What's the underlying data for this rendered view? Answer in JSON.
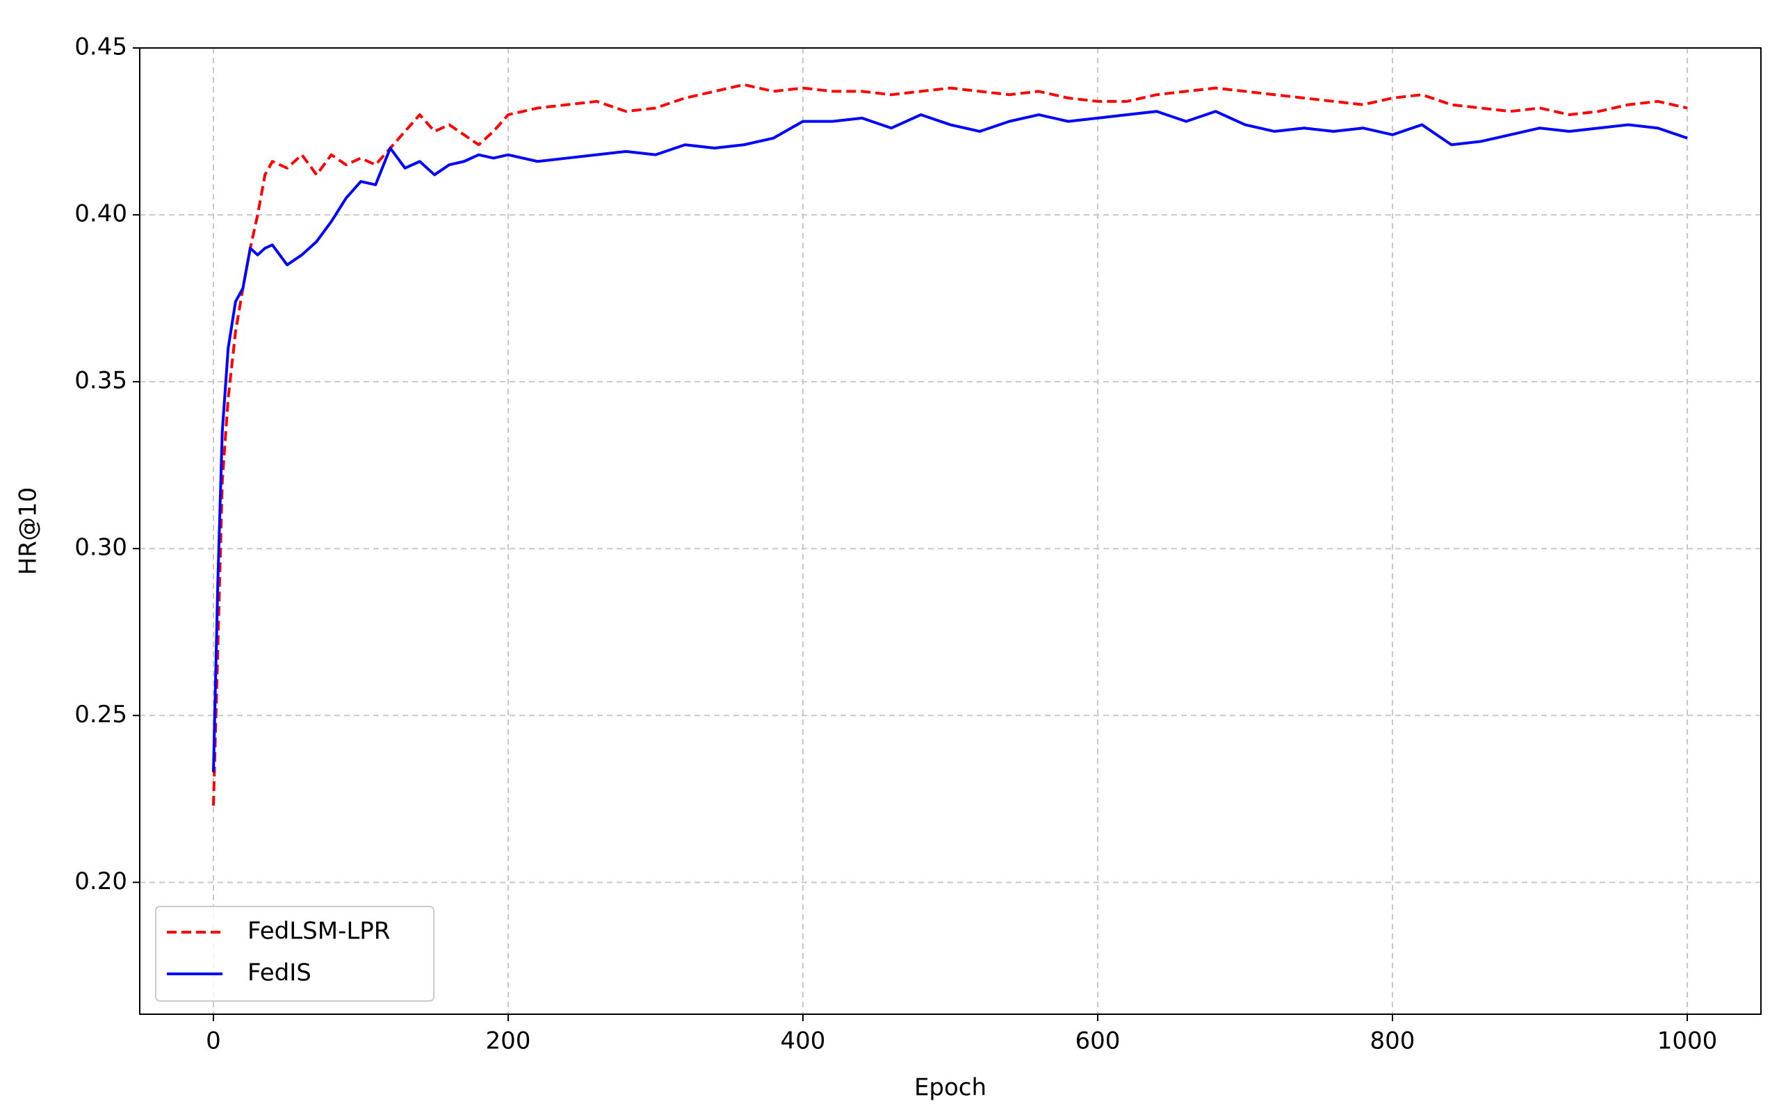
{
  "chart_data": {
    "type": "line",
    "x_label": "Epoch",
    "y_label": "HR@10",
    "x": [
      0,
      3,
      6,
      10,
      15,
      20,
      25,
      30,
      35,
      40,
      50,
      60,
      70,
      80,
      90,
      100,
      110,
      120,
      130,
      140,
      150,
      160,
      170,
      180,
      190,
      200,
      220,
      240,
      260,
      280,
      300,
      320,
      340,
      360,
      380,
      400,
      420,
      440,
      460,
      480,
      500,
      520,
      540,
      560,
      580,
      600,
      620,
      640,
      660,
      680,
      700,
      720,
      740,
      760,
      780,
      800,
      820,
      840,
      860,
      880,
      900,
      920,
      940,
      960,
      980,
      1000
    ],
    "series": [
      {
        "name": "FedLSM-LPR",
        "color": "#ff0000",
        "dash": true,
        "values": [
          0.223,
          0.27,
          0.32,
          0.345,
          0.365,
          0.378,
          0.39,
          0.4,
          0.412,
          0.416,
          0.414,
          0.418,
          0.412,
          0.418,
          0.415,
          0.417,
          0.415,
          0.42,
          0.425,
          0.43,
          0.425,
          0.427,
          0.424,
          0.421,
          0.425,
          0.43,
          0.432,
          0.433,
          0.434,
          0.431,
          0.432,
          0.435,
          0.437,
          0.439,
          0.437,
          0.438,
          0.437,
          0.437,
          0.436,
          0.437,
          0.438,
          0.437,
          0.436,
          0.437,
          0.435,
          0.434,
          0.434,
          0.436,
          0.437,
          0.438,
          0.437,
          0.436,
          0.435,
          0.434,
          0.433,
          0.435,
          0.436,
          0.433,
          0.432,
          0.431,
          0.432,
          0.43,
          0.431,
          0.433,
          0.434,
          0.432
        ]
      },
      {
        "name": "FedIS",
        "color": "#0000ff",
        "dash": false,
        "values": [
          0.233,
          0.29,
          0.335,
          0.36,
          0.374,
          0.378,
          0.39,
          0.388,
          0.39,
          0.391,
          0.385,
          0.388,
          0.392,
          0.398,
          0.405,
          0.41,
          0.409,
          0.42,
          0.414,
          0.416,
          0.412,
          0.415,
          0.416,
          0.418,
          0.417,
          0.418,
          0.416,
          0.417,
          0.418,
          0.419,
          0.418,
          0.421,
          0.42,
          0.421,
          0.423,
          0.428,
          0.428,
          0.429,
          0.426,
          0.43,
          0.427,
          0.425,
          0.428,
          0.43,
          0.428,
          0.429,
          0.43,
          0.431,
          0.428,
          0.431,
          0.427,
          0.425,
          0.426,
          0.425,
          0.426,
          0.424,
          0.427,
          0.421,
          0.422,
          0.424,
          0.426,
          0.425,
          0.426,
          0.427,
          0.426,
          0.423
        ]
      }
    ],
    "xlim": [
      -50,
      1050
    ],
    "ylim": [
      0.1605,
      0.45
    ],
    "xticks": [
      0,
      200,
      400,
      600,
      800,
      1000
    ],
    "yticks": [
      {
        "value": 0.2,
        "label": "0.20"
      },
      0.25,
      {
        "value": 0.3,
        "label": "0.30"
      },
      0.35,
      {
        "value": 0.4,
        "label": "0.40"
      },
      0.45
    ],
    "grid": true,
    "legend": "lower left"
  }
}
